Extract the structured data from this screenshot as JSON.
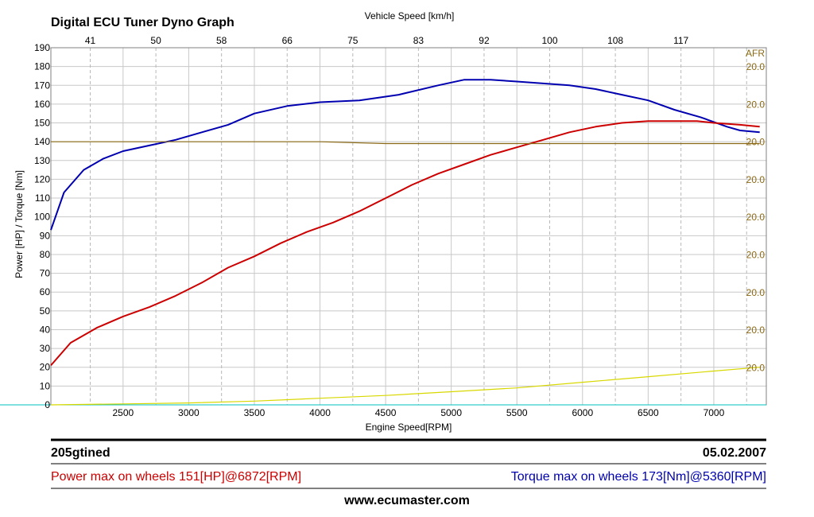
{
  "header": {
    "title": "Digital ECU Tuner Dyno Graph"
  },
  "chart_data": {
    "type": "line",
    "title": "Digital ECU Tuner Dyno Graph",
    "xlabel": "Engine Speed[RPM]",
    "x2label": "Vehicle Speed [km/h]",
    "ylabel": "Power [HP] / Torque [Nm]",
    "y2label": "AFR",
    "xlim": [
      1950,
      7400
    ],
    "ylim": [
      0,
      190
    ],
    "x_ticks": [
      "2500",
      "3000",
      "3500",
      "4000",
      "4500",
      "5000",
      "5500",
      "6000",
      "6500",
      "7000"
    ],
    "x_tick_values": [
      2500,
      3000,
      3500,
      4000,
      4500,
      5000,
      5500,
      6000,
      6500,
      7000
    ],
    "x2_ticks": [
      "41",
      "50",
      "58",
      "66",
      "75",
      "83",
      "92",
      "100",
      "108",
      "117"
    ],
    "y_ticks": [
      "0",
      "10",
      "20",
      "30",
      "40",
      "50",
      "60",
      "70",
      "80",
      "90",
      "100",
      "110",
      "120",
      "130",
      "140",
      "150",
      "160",
      "170",
      "180",
      "190"
    ],
    "y2_ticks": [
      "20.0",
      "20.0",
      "20.0",
      "20.0",
      "20.0",
      "20.0",
      "20.0",
      "20.0",
      "20.0"
    ],
    "grid": true,
    "series": [
      {
        "name": "Torque",
        "color": "#0000b0",
        "x": [
          1950,
          2050,
          2200,
          2350,
          2500,
          2700,
          2900,
          3100,
          3300,
          3500,
          3750,
          4000,
          4300,
          4600,
          4900,
          5100,
          5300,
          5500,
          5700,
          5900,
          6100,
          6300,
          6500,
          6700,
          6900,
          7100,
          7200,
          7350
        ],
        "y": [
          93,
          113,
          125,
          131,
          135,
          138,
          141,
          145,
          149,
          155,
          159,
          161,
          162,
          165,
          170,
          173,
          173,
          172,
          171,
          170,
          168,
          165,
          162,
          157,
          153,
          148,
          146,
          145
        ]
      },
      {
        "name": "Power",
        "color": "#cc0000",
        "x": [
          1950,
          2100,
          2300,
          2500,
          2700,
          2900,
          3100,
          3300,
          3500,
          3700,
          3900,
          4100,
          4300,
          4500,
          4700,
          4900,
          5100,
          5300,
          5500,
          5700,
          5900,
          6100,
          6300,
          6500,
          6700,
          6872,
          7000,
          7200,
          7350
        ],
        "y": [
          21,
          33,
          41,
          47,
          52,
          58,
          65,
          73,
          79,
          86,
          92,
          97,
          103,
          110,
          117,
          123,
          128,
          133,
          137,
          141,
          145,
          148,
          150,
          151,
          151,
          151,
          150,
          149,
          148
        ]
      },
      {
        "name": "AFR",
        "color": "#8b6914",
        "x": [
          1950,
          2500,
          3000,
          3500,
          4000,
          4500,
          5000,
          5500,
          6000,
          6500,
          7000,
          7350
        ],
        "y": [
          140,
          140,
          140,
          140,
          140,
          139,
          139,
          139,
          139,
          139,
          139,
          139
        ]
      },
      {
        "name": "Speed",
        "color": "#d8d800",
        "x": [
          1950,
          2500,
          3000,
          3500,
          4000,
          4500,
          5000,
          5500,
          6000,
          6500,
          7000,
          7350
        ],
        "y": [
          0,
          0.5,
          1,
          2,
          3.5,
          5,
          7,
          9,
          12,
          15,
          18,
          20
        ]
      }
    ]
  },
  "info": {
    "car_name": "205gtined",
    "date": "05.02.2007",
    "power_max": "Power max on wheels 151[HP]@6872[RPM]",
    "torque_max": "Torque max on wheels 173[Nm]@5360[RPM]",
    "website": "www.ecumaster.com",
    "power_color": "#cc0000",
    "torque_color": "#0000b0"
  }
}
